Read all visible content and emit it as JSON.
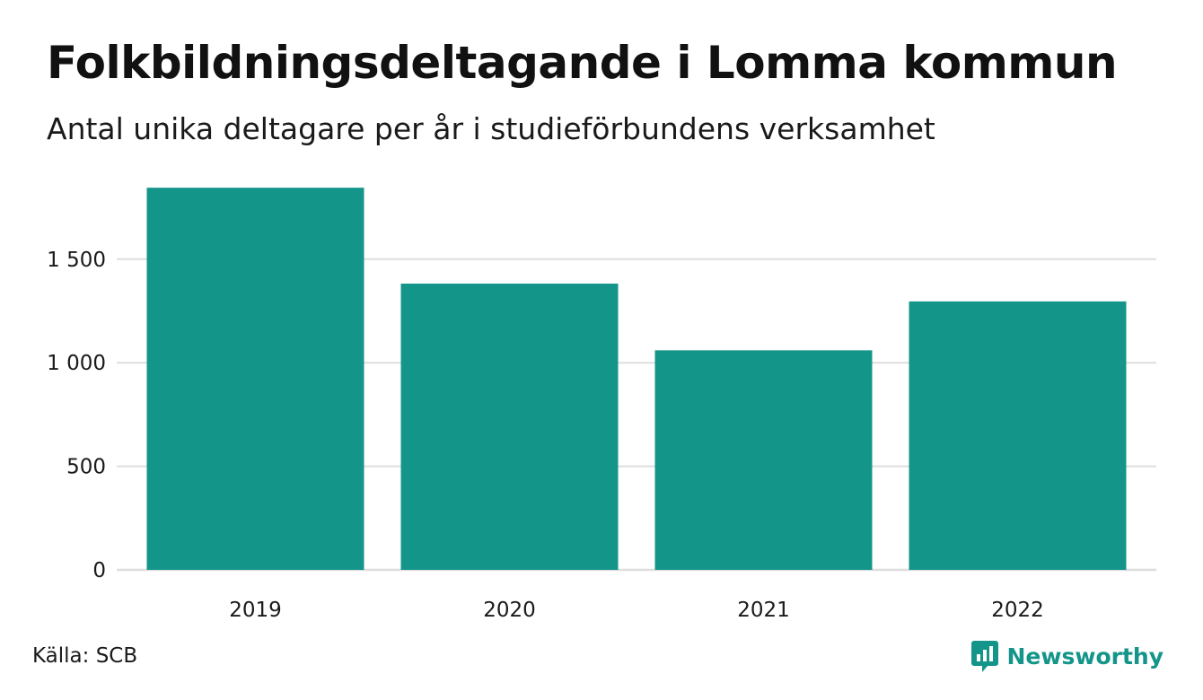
{
  "chart_data": {
    "type": "bar",
    "title": "Folkbildningsdeltagande i Lomma kommun",
    "subtitle": "Antal unika deltagare per år i studieförbundens verksamhet",
    "categories": [
      "2019",
      "2020",
      "2021",
      "2022"
    ],
    "values": [
      1845,
      1382,
      1060,
      1296
    ],
    "ylim": [
      0,
      1900
    ],
    "yticks": [
      0,
      500,
      1000,
      1500
    ],
    "ytick_labels": [
      "0",
      "500",
      "1 000",
      "1 500"
    ],
    "grid": true,
    "bar_color": "#14958a",
    "grid_color": "#dedede"
  },
  "footer": {
    "source": "Källa: SCB",
    "brand": "Newsworthy",
    "brand_color": "#14958a",
    "brand_icon": "newsworthy-logo-icon"
  }
}
